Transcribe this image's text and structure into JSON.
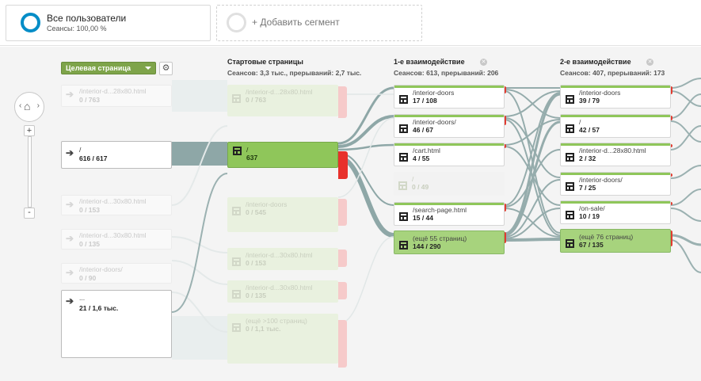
{
  "segments": {
    "active": {
      "title": "Все пользователи",
      "subtitle": "Сеансы: 100,00 %"
    },
    "add_label": "+ Добавить сегмент"
  },
  "controls": {
    "dimension_label": "Целевая страница",
    "gear_icon": "gear-icon",
    "left_glyph": "‹",
    "right_glyph": "›",
    "home_glyph": "⌂",
    "zoom_in": "+",
    "zoom_out": "-"
  },
  "columns": [
    {
      "title": "Стартовые страницы",
      "subtitle": "Сеансов: 3,3 тыс., прерываний: 2,7 тыс."
    },
    {
      "title": "1-е взаимодействие",
      "subtitle": "Сеансов: 613, прерываний: 206"
    },
    {
      "title": "2-е взаимодействие",
      "subtitle": "Сеансов: 407, прерываний: 173"
    }
  ],
  "landing": [
    {
      "title": "/interior-d...28x80.html",
      "value": "0 / 763"
    },
    {
      "title": "/",
      "value": "616 / 617"
    },
    {
      "title": "/interior-d...30x80.html",
      "value": "0 / 153"
    },
    {
      "title": "/interior-d...30x80.html",
      "value": "0 / 135"
    },
    {
      "title": "/interior-doors/",
      "value": "0 / 90"
    },
    {
      "title": "...",
      "value": "21 / 1,6 тыс."
    }
  ],
  "start_pages": [
    {
      "title": "/interior-d...28x80.html",
      "value": "0 / 763"
    },
    {
      "title": "/",
      "value": "637"
    },
    {
      "title": "/interior-doors",
      "value": "0 / 545"
    },
    {
      "title": "/interior-d...30x80.html",
      "value": "0 / 153"
    },
    {
      "title": "/interior-d...30x80.html",
      "value": "0 / 135"
    },
    {
      "title": "(ещё >100 страниц)",
      "value": "0 / 1,1 тыс."
    }
  ],
  "first_interaction": [
    {
      "title": "/interior-doors",
      "value": "17 / 108"
    },
    {
      "title": "/interior-doors/",
      "value": "46 / 67"
    },
    {
      "title": "/cart.html",
      "value": "4 / 55"
    },
    {
      "title": "/",
      "value": "0 / 49"
    },
    {
      "title": "/search-page.html",
      "value": "15 / 44"
    },
    {
      "title": "(ещё 55 страниц)",
      "value": "144 / 290"
    }
  ],
  "second_interaction": [
    {
      "title": "/interior-doors",
      "value": "39 / 79"
    },
    {
      "title": "/",
      "value": "42 / 57"
    },
    {
      "title": "/interior-d...28x80.html",
      "value": "2 / 32"
    },
    {
      "title": "/interior-doors/",
      "value": "7 / 25"
    },
    {
      "title": "/on-sale/",
      "value": "10 / 19"
    },
    {
      "title": "(ещё 76 страниц)",
      "value": "67 / 135"
    }
  ],
  "colors": {
    "accent": "#058dc7",
    "node_green": "#8fc65a",
    "drop_red": "#e8312b",
    "flow": "#8ea7a7"
  }
}
